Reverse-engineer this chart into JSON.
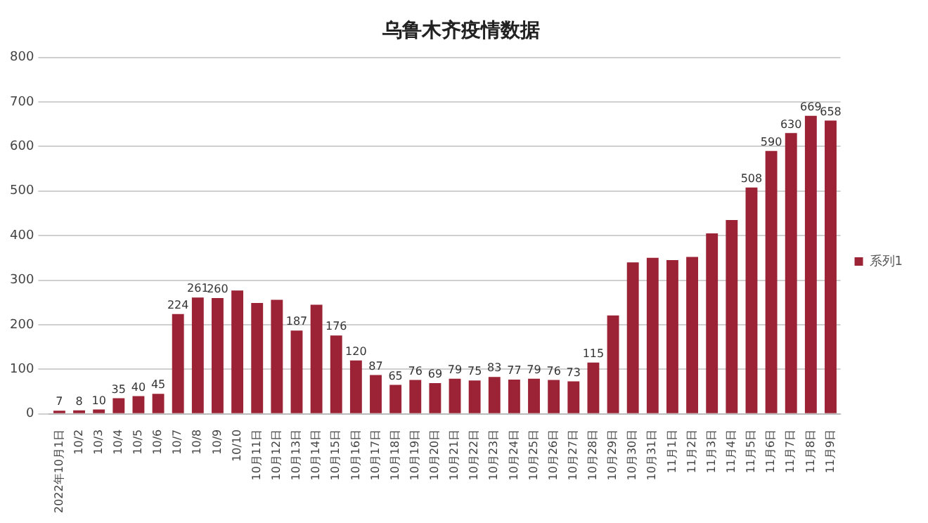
{
  "chart_data": {
    "type": "bar",
    "title": "乌鲁木齐疫情数据",
    "categories": [
      "2022年10月1日",
      "10/2",
      "10/3",
      "10/4",
      "10/5",
      "10/6",
      "10/7",
      "10/8",
      "10/9",
      "10/10",
      "10月11日",
      "10月12日",
      "10月13日",
      "10月14日",
      "10月15日",
      "10月16日",
      "10月17日",
      "10月18日",
      "10月19日",
      "10月20日",
      "10月21日",
      "10月22日",
      "10月23日",
      "10月24日",
      "10月25日",
      "10月26日",
      "10月27日",
      "10月28日",
      "10月29日",
      "10月30日",
      "10月31日",
      "11月1日",
      "11月2日",
      "11月3日",
      "11月4日",
      "11月5日",
      "11月6日",
      "11月7日",
      "11月8日",
      "11月9日"
    ],
    "series": [
      {
        "name": "系列1",
        "color": "#9b2335",
        "values": [
          7,
          8,
          10,
          35,
          40,
          45,
          224,
          261,
          260,
          277,
          249,
          256,
          187,
          245,
          176,
          120,
          87,
          65,
          76,
          69,
          79,
          75,
          83,
          77,
          79,
          76,
          73,
          115,
          221,
          340,
          350,
          345,
          352,
          405,
          435,
          508,
          590,
          630,
          669,
          658
        ],
        "value_labels": [
          "7",
          "8",
          "10",
          "35",
          "40",
          "45",
          "224",
          "261",
          "260",
          null,
          null,
          null,
          "187",
          null,
          "176",
          "120",
          "87",
          "65",
          "76",
          "69",
          "79",
          "75",
          "83",
          "77",
          "79",
          "76",
          "73",
          "115",
          null,
          null,
          null,
          null,
          null,
          null,
          null,
          "508",
          "590",
          "630",
          "669",
          "658"
        ]
      }
    ],
    "ylim": [
      0,
      800
    ],
    "yticks": [
      0,
      100,
      200,
      300,
      400,
      500,
      600,
      700,
      800
    ],
    "grid": "y",
    "legend": "right"
  }
}
